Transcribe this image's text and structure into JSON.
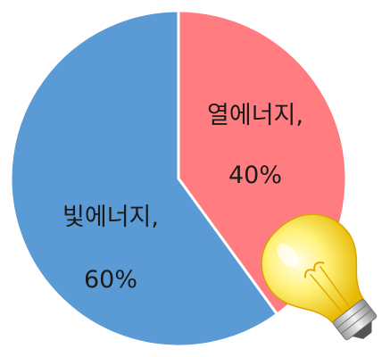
{
  "chart_data": {
    "type": "pie",
    "categories": [
      "빛에너지",
      "열에너지"
    ],
    "values": [
      60,
      40
    ],
    "labels": [
      {
        "name": "빛에너지,",
        "percent": "60%"
      },
      {
        "name": "열에너지,",
        "percent": "40%"
      }
    ],
    "colors": [
      "#5b9bd5",
      "#ff7c80"
    ],
    "title": "",
    "legend": "none"
  },
  "decoration": {
    "icon": "light-bulb-icon",
    "bulb_color": "#fff27a"
  }
}
